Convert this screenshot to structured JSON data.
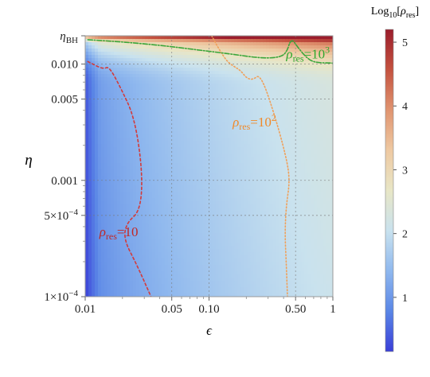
{
  "chart_data": {
    "type": "heatmap",
    "title": "",
    "xlabel": "ϵ",
    "ylabel": "η",
    "x_scale": "log",
    "y_scale": "log",
    "xlim": [
      0.01,
      1.0
    ],
    "ylim": [
      0.0001,
      0.0175
    ],
    "x_ticks": [
      {
        "value": 0.01,
        "label": "0.01"
      },
      {
        "value": 0.05,
        "label": "0.05"
      },
      {
        "value": 0.1,
        "label": "0.10"
      },
      {
        "value": 0.5,
        "label": "0.50"
      },
      {
        "value": 1.0,
        "label": "1"
      }
    ],
    "y_ticks": [
      {
        "value": 0.0001,
        "label": "1×10⁻⁴"
      },
      {
        "value": 0.0005,
        "label": "5×10⁻⁴"
      },
      {
        "value": 0.001,
        "label": "0.001"
      },
      {
        "value": 0.005,
        "label": "0.005"
      },
      {
        "value": 0.01,
        "label": "0.010"
      },
      {
        "value": 0.0175,
        "label": "η_BH"
      }
    ],
    "colorbar": {
      "label": "Log₁₀[ρ_res]",
      "range": [
        0.15,
        5.2
      ],
      "ticks": [
        1,
        2,
        3,
        4,
        5
      ],
      "colormap": [
        "#3a3fd8",
        "#5a86e6",
        "#8fb8ee",
        "#c9e2ee",
        "#e8e6c6",
        "#eec9a2",
        "#e09470",
        "#c4523f",
        "#9b1d2c"
      ]
    },
    "contours": [
      {
        "label": "ρ_res=10",
        "level": 1,
        "color": "#d33a3a",
        "style": "dashed",
        "points": [
          [
            0.0105,
            0.0105
          ],
          [
            0.014,
            0.009
          ],
          [
            0.0155,
            0.0096
          ],
          [
            0.019,
            0.0065
          ],
          [
            0.025,
            0.0035
          ],
          [
            0.029,
            0.0012
          ],
          [
            0.028,
            0.00055
          ],
          [
            0.0215,
            0.00043
          ],
          [
            0.0205,
            0.00031
          ],
          [
            0.026,
            0.00019
          ],
          [
            0.034,
            0.0001
          ]
        ]
      },
      {
        "label": "ρ_res=10²",
        "level": 2,
        "color": "#f0a05a",
        "style": "dotted",
        "points": [
          [
            0.105,
            0.0175
          ],
          [
            0.12,
            0.0135
          ],
          [
            0.14,
            0.0105
          ],
          [
            0.16,
            0.0095
          ],
          [
            0.18,
            0.0088
          ],
          [
            0.2,
            0.0076
          ],
          [
            0.225,
            0.0073
          ],
          [
            0.26,
            0.0082
          ],
          [
            0.33,
            0.004
          ],
          [
            0.42,
            0.0016
          ],
          [
            0.45,
            0.001
          ],
          [
            0.42,
            0.0006
          ],
          [
            0.41,
            0.00035
          ],
          [
            0.42,
            0.0002
          ],
          [
            0.43,
            0.0001
          ]
        ]
      },
      {
        "label": "ρ_res=10³",
        "level": 3,
        "color": "#3aa63a",
        "style": "dashdot",
        "points": [
          [
            0.0105,
            0.0162
          ],
          [
            0.02,
            0.0155
          ],
          [
            0.04,
            0.0145
          ],
          [
            0.07,
            0.0135
          ],
          [
            0.15,
            0.0122
          ],
          [
            0.25,
            0.0113
          ],
          [
            0.35,
            0.0113
          ],
          [
            0.42,
            0.0122
          ],
          [
            0.46,
            0.0168
          ],
          [
            0.52,
            0.014
          ],
          [
            0.6,
            0.0116
          ],
          [
            0.7,
            0.0103
          ],
          [
            1.0,
            0.0102
          ]
        ]
      }
    ],
    "annotations": [
      {
        "text_base": "ρ",
        "text_sub": "res",
        "text_rest": "=10",
        "sup": "",
        "color": "#c02828",
        "x": 0.013,
        "y": 0.00033
      },
      {
        "text_base": "ρ",
        "text_sub": "res",
        "text_rest": "=10",
        "sup": "2",
        "color": "#f08a2a",
        "x": 0.155,
        "y": 0.0029
      },
      {
        "text_base": "ρ",
        "text_sub": "res",
        "text_rest": "=10",
        "sup": "3",
        "color": "#2fa82f",
        "x": 0.42,
        "y": 0.0112
      }
    ],
    "grid": true
  }
}
